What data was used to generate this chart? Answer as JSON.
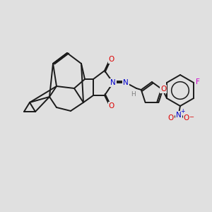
{
  "bg_color": "#e0e0e0",
  "bond_color": "#1a1a1a",
  "atom_colors": {
    "O": "#dd0000",
    "N": "#0000cc",
    "F": "#cc00cc",
    "H": "#808080"
  },
  "figsize": [
    3.0,
    3.0
  ],
  "dpi": 100
}
